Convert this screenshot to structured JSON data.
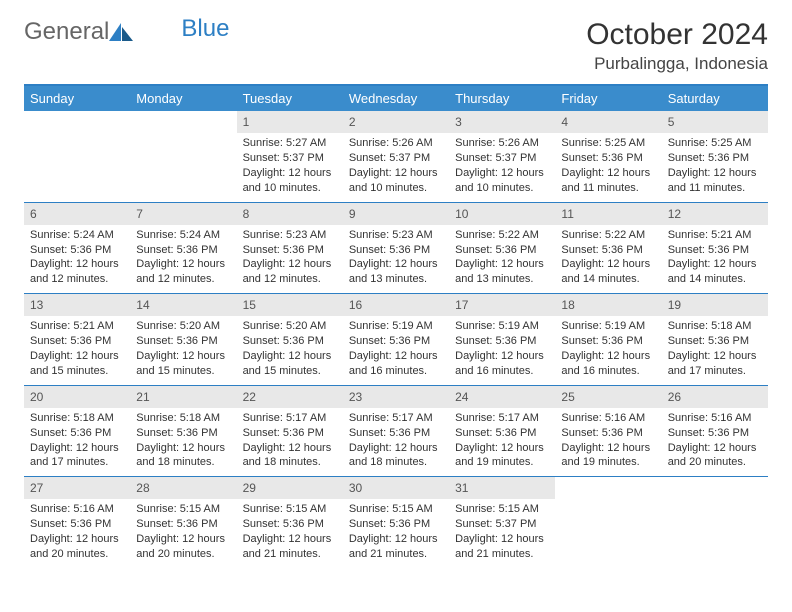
{
  "logo": {
    "part1": "General",
    "part2": "Blue"
  },
  "title": "October 2024",
  "location": "Purbalingga, Indonesia",
  "colors": {
    "header_bg": "#3a8ccc",
    "border": "#2d7fc4",
    "daynum_bg": "#e8e8e8",
    "text": "#333333"
  },
  "weekdays": [
    "Sunday",
    "Monday",
    "Tuesday",
    "Wednesday",
    "Thursday",
    "Friday",
    "Saturday"
  ],
  "weeks": [
    [
      null,
      null,
      {
        "n": "1",
        "sr": "Sunrise: 5:27 AM",
        "ss": "Sunset: 5:37 PM",
        "dl": "Daylight: 12 hours and 10 minutes."
      },
      {
        "n": "2",
        "sr": "Sunrise: 5:26 AM",
        "ss": "Sunset: 5:37 PM",
        "dl": "Daylight: 12 hours and 10 minutes."
      },
      {
        "n": "3",
        "sr": "Sunrise: 5:26 AM",
        "ss": "Sunset: 5:37 PM",
        "dl": "Daylight: 12 hours and 10 minutes."
      },
      {
        "n": "4",
        "sr": "Sunrise: 5:25 AM",
        "ss": "Sunset: 5:36 PM",
        "dl": "Daylight: 12 hours and 11 minutes."
      },
      {
        "n": "5",
        "sr": "Sunrise: 5:25 AM",
        "ss": "Sunset: 5:36 PM",
        "dl": "Daylight: 12 hours and 11 minutes."
      }
    ],
    [
      {
        "n": "6",
        "sr": "Sunrise: 5:24 AM",
        "ss": "Sunset: 5:36 PM",
        "dl": "Daylight: 12 hours and 12 minutes."
      },
      {
        "n": "7",
        "sr": "Sunrise: 5:24 AM",
        "ss": "Sunset: 5:36 PM",
        "dl": "Daylight: 12 hours and 12 minutes."
      },
      {
        "n": "8",
        "sr": "Sunrise: 5:23 AM",
        "ss": "Sunset: 5:36 PM",
        "dl": "Daylight: 12 hours and 12 minutes."
      },
      {
        "n": "9",
        "sr": "Sunrise: 5:23 AM",
        "ss": "Sunset: 5:36 PM",
        "dl": "Daylight: 12 hours and 13 minutes."
      },
      {
        "n": "10",
        "sr": "Sunrise: 5:22 AM",
        "ss": "Sunset: 5:36 PM",
        "dl": "Daylight: 12 hours and 13 minutes."
      },
      {
        "n": "11",
        "sr": "Sunrise: 5:22 AM",
        "ss": "Sunset: 5:36 PM",
        "dl": "Daylight: 12 hours and 14 minutes."
      },
      {
        "n": "12",
        "sr": "Sunrise: 5:21 AM",
        "ss": "Sunset: 5:36 PM",
        "dl": "Daylight: 12 hours and 14 minutes."
      }
    ],
    [
      {
        "n": "13",
        "sr": "Sunrise: 5:21 AM",
        "ss": "Sunset: 5:36 PM",
        "dl": "Daylight: 12 hours and 15 minutes."
      },
      {
        "n": "14",
        "sr": "Sunrise: 5:20 AM",
        "ss": "Sunset: 5:36 PM",
        "dl": "Daylight: 12 hours and 15 minutes."
      },
      {
        "n": "15",
        "sr": "Sunrise: 5:20 AM",
        "ss": "Sunset: 5:36 PM",
        "dl": "Daylight: 12 hours and 15 minutes."
      },
      {
        "n": "16",
        "sr": "Sunrise: 5:19 AM",
        "ss": "Sunset: 5:36 PM",
        "dl": "Daylight: 12 hours and 16 minutes."
      },
      {
        "n": "17",
        "sr": "Sunrise: 5:19 AM",
        "ss": "Sunset: 5:36 PM",
        "dl": "Daylight: 12 hours and 16 minutes."
      },
      {
        "n": "18",
        "sr": "Sunrise: 5:19 AM",
        "ss": "Sunset: 5:36 PM",
        "dl": "Daylight: 12 hours and 16 minutes."
      },
      {
        "n": "19",
        "sr": "Sunrise: 5:18 AM",
        "ss": "Sunset: 5:36 PM",
        "dl": "Daylight: 12 hours and 17 minutes."
      }
    ],
    [
      {
        "n": "20",
        "sr": "Sunrise: 5:18 AM",
        "ss": "Sunset: 5:36 PM",
        "dl": "Daylight: 12 hours and 17 minutes."
      },
      {
        "n": "21",
        "sr": "Sunrise: 5:18 AM",
        "ss": "Sunset: 5:36 PM",
        "dl": "Daylight: 12 hours and 18 minutes."
      },
      {
        "n": "22",
        "sr": "Sunrise: 5:17 AM",
        "ss": "Sunset: 5:36 PM",
        "dl": "Daylight: 12 hours and 18 minutes."
      },
      {
        "n": "23",
        "sr": "Sunrise: 5:17 AM",
        "ss": "Sunset: 5:36 PM",
        "dl": "Daylight: 12 hours and 18 minutes."
      },
      {
        "n": "24",
        "sr": "Sunrise: 5:17 AM",
        "ss": "Sunset: 5:36 PM",
        "dl": "Daylight: 12 hours and 19 minutes."
      },
      {
        "n": "25",
        "sr": "Sunrise: 5:16 AM",
        "ss": "Sunset: 5:36 PM",
        "dl": "Daylight: 12 hours and 19 minutes."
      },
      {
        "n": "26",
        "sr": "Sunrise: 5:16 AM",
        "ss": "Sunset: 5:36 PM",
        "dl": "Daylight: 12 hours and 20 minutes."
      }
    ],
    [
      {
        "n": "27",
        "sr": "Sunrise: 5:16 AM",
        "ss": "Sunset: 5:36 PM",
        "dl": "Daylight: 12 hours and 20 minutes."
      },
      {
        "n": "28",
        "sr": "Sunrise: 5:15 AM",
        "ss": "Sunset: 5:36 PM",
        "dl": "Daylight: 12 hours and 20 minutes."
      },
      {
        "n": "29",
        "sr": "Sunrise: 5:15 AM",
        "ss": "Sunset: 5:36 PM",
        "dl": "Daylight: 12 hours and 21 minutes."
      },
      {
        "n": "30",
        "sr": "Sunrise: 5:15 AM",
        "ss": "Sunset: 5:36 PM",
        "dl": "Daylight: 12 hours and 21 minutes."
      },
      {
        "n": "31",
        "sr": "Sunrise: 5:15 AM",
        "ss": "Sunset: 5:37 PM",
        "dl": "Daylight: 12 hours and 21 minutes."
      },
      null,
      null
    ]
  ]
}
